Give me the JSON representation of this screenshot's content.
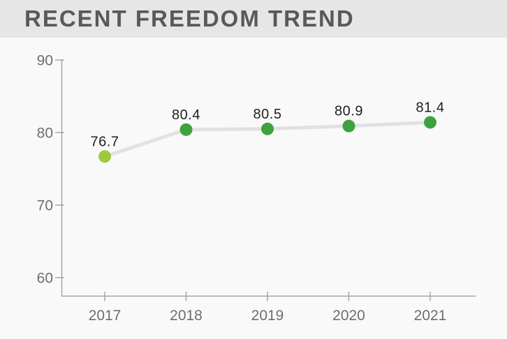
{
  "header": {
    "title": "RECENT FREEDOM TREND"
  },
  "colors": {
    "header_bg": "#e6e6e6",
    "page_bg": "#f9f9f9",
    "title_text": "#58595b",
    "axis": "#9b9b9b",
    "tick_label": "#6d6e71",
    "data_label": "#1e1e1e",
    "trend_line": "#e1e1e3",
    "point_green": "#3ea23e",
    "point_yellow_green": "#9fc93c"
  },
  "chart_data": {
    "type": "line",
    "title": "RECENT FREEDOM TREND",
    "categories": [
      "2017",
      "2018",
      "2019",
      "2020",
      "2021"
    ],
    "values": [
      76.7,
      80.4,
      80.5,
      80.9,
      81.4
    ],
    "point_labels": [
      "76.7",
      "80.4",
      "80.5",
      "80.9",
      "81.4"
    ],
    "point_colors": [
      "#9fc93c",
      "#3ea23e",
      "#3ea23e",
      "#3ea23e",
      "#3ea23e"
    ],
    "xlabel": "",
    "ylabel": "",
    "ylim": [
      57,
      90
    ],
    "yticks": [
      90,
      80,
      70,
      60
    ],
    "grid": false,
    "legend": null
  }
}
